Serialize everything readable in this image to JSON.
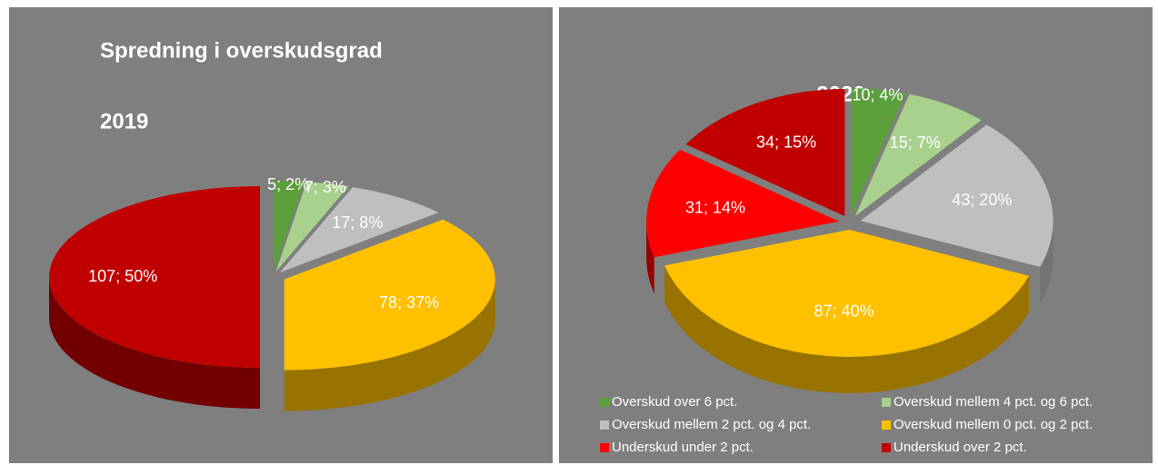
{
  "chart_data": [
    {
      "type": "pie",
      "title": "Spredning i overskudsgrad",
      "subtitle": "2019",
      "values": [
        5,
        7,
        17,
        78,
        107
      ],
      "value_labels": [
        "5; 2%",
        "7; 3%",
        "17; 8%",
        "78; 37%",
        "107; 50%"
      ],
      "colors": [
        "#5b9f3a",
        "#a9d18e",
        "#bfbfbf",
        "#ffc000",
        "#c00000"
      ]
    },
    {
      "type": "pie",
      "title": "2020",
      "categories": [
        "Overskud over 6 pct.",
        "Overskud mellem 4 pct. og 6 pct.",
        "Overskud mellem 2 pct. og 4 pct.",
        "Overskud mellem 0 pct. og 2 pct.",
        "Underskud under 2 pct.",
        "Underskud over 2 pct."
      ],
      "values": [
        10,
        15,
        43,
        87,
        31,
        34
      ],
      "value_labels": [
        "10; 4%",
        "15; 7%",
        "43; 20%",
        "87; 40%",
        "31; 14%",
        "34; 15%"
      ],
      "colors": [
        "#5b9f3a",
        "#a9d18e",
        "#bfbfbf",
        "#ffc000",
        "#ff0000",
        "#c00000"
      ],
      "legend": "bottom"
    }
  ]
}
